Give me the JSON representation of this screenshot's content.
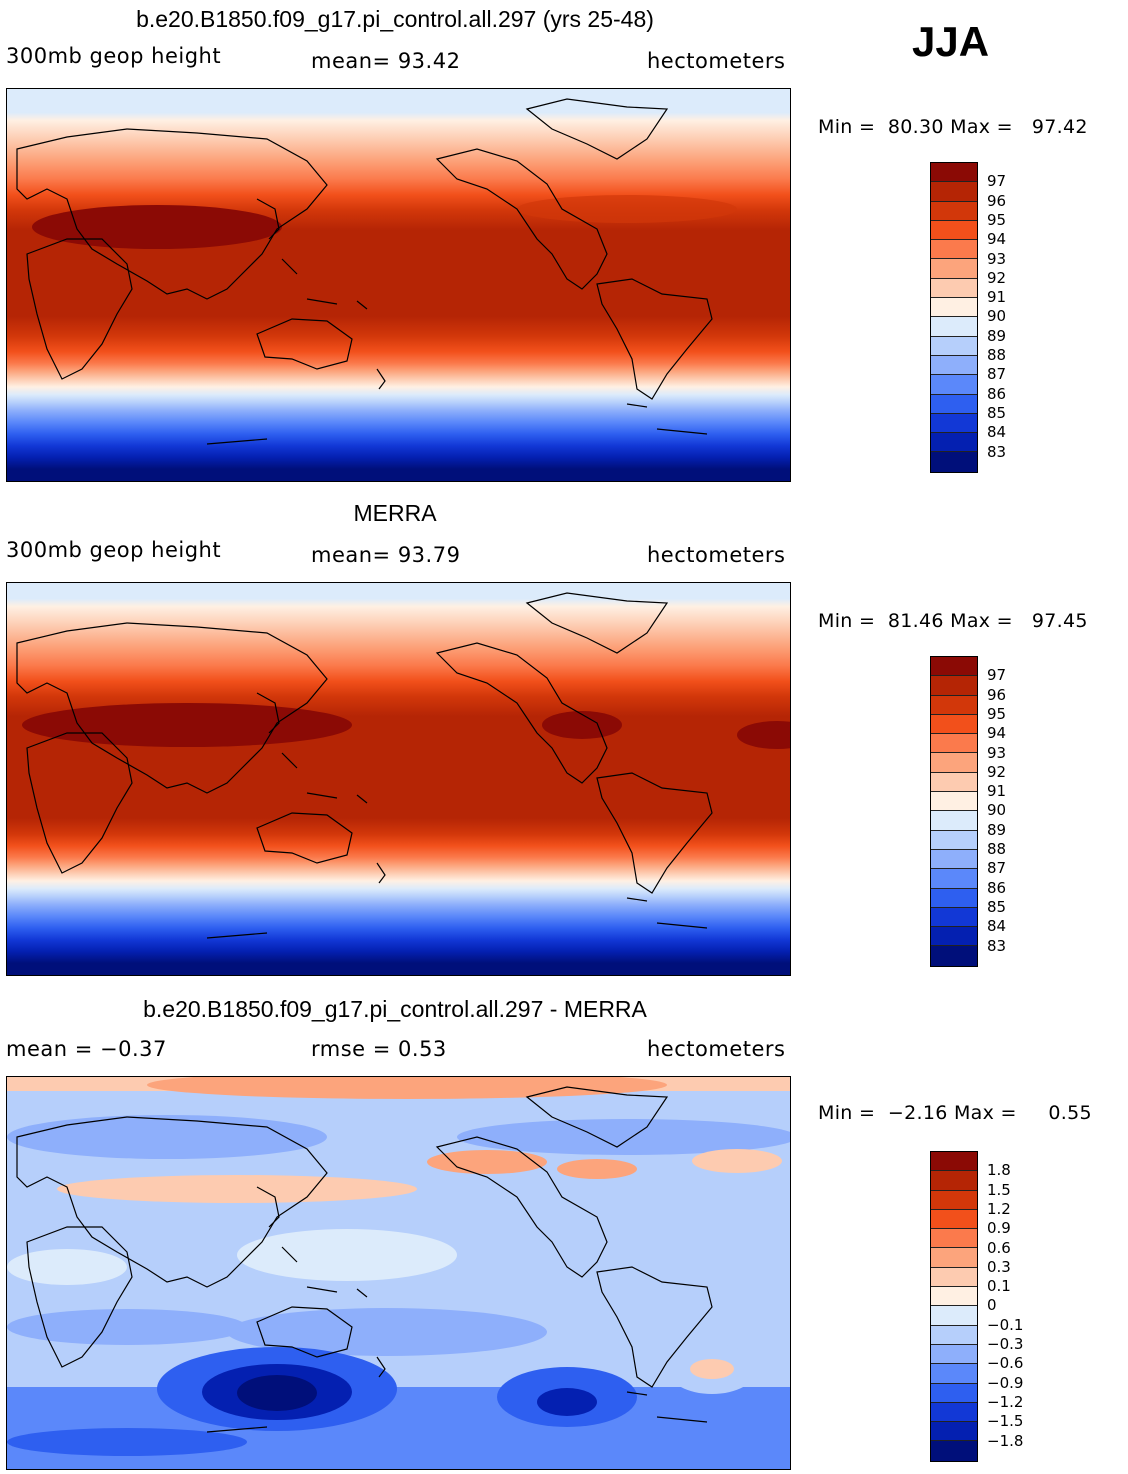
{
  "season": "JJA",
  "panels": [
    {
      "title": "b.e20.B1850.f09_g17.pi_control.all.297 (yrs 25-48)",
      "left": "300mb geop height",
      "center": "mean=  93.42",
      "right": "hectometers",
      "min_label": "Min =",
      "min_value": "80.30",
      "max_label": "Max =",
      "max_value": "97.42",
      "colorbar": {
        "labels": [
          "97",
          "96",
          "95",
          "94",
          "93",
          "92",
          "91",
          "90",
          "89",
          "88",
          "87",
          "86",
          "85",
          "84",
          "83"
        ],
        "colors": [
          "#8b0a05",
          "#b52505",
          "#d2370a",
          "#f2501b",
          "#fb7a4c",
          "#fca47c",
          "#fdcbb0",
          "#fff0e3",
          "#dcebfb",
          "#b6cffb",
          "#8eaffb",
          "#5b88fa",
          "#2e5ff0",
          "#1238d6",
          "#0420b1",
          "#000f7a"
        ]
      }
    },
    {
      "title": "MERRA",
      "left": "300mb geop height",
      "center": "mean=  93.79",
      "right": "hectometers",
      "min_label": "Min =",
      "min_value": "81.46",
      "max_label": "Max =",
      "max_value": "97.45",
      "colorbar": {
        "labels": [
          "97",
          "96",
          "95",
          "94",
          "93",
          "92",
          "91",
          "90",
          "89",
          "88",
          "87",
          "86",
          "85",
          "84",
          "83"
        ],
        "colors": [
          "#8b0a05",
          "#b52505",
          "#d2370a",
          "#f2501b",
          "#fb7a4c",
          "#fca47c",
          "#fdcbb0",
          "#fff0e3",
          "#dcebfb",
          "#b6cffb",
          "#8eaffb",
          "#5b88fa",
          "#2e5ff0",
          "#1238d6",
          "#0420b1",
          "#000f7a"
        ]
      }
    },
    {
      "title": "b.e20.B1850.f09_g17.pi_control.all.297 - MERRA",
      "left": "mean =   −0.37",
      "center": "rmse =    0.53",
      "right": "hectometers",
      "min_label": "Min =",
      "min_value": "−2.16",
      "max_label": "Max =",
      "max_value": "0.55",
      "colorbar": {
        "labels": [
          "1.8",
          "1.5",
          "1.2",
          "0.9",
          "0.6",
          "0.3",
          "0.1",
          "0",
          "−0.1",
          "−0.3",
          "−0.6",
          "−0.9",
          "−1.2",
          "−1.5",
          "−1.8"
        ],
        "colors": [
          "#8b0a05",
          "#b52505",
          "#d2370a",
          "#f2501b",
          "#fb7a4c",
          "#fca47c",
          "#fdcbb0",
          "#fff0e3",
          "#dcebfb",
          "#b6cffb",
          "#8eaffb",
          "#5b88fa",
          "#2e5ff0",
          "#1238d6",
          "#0420b1",
          "#000f7a"
        ]
      }
    }
  ]
}
